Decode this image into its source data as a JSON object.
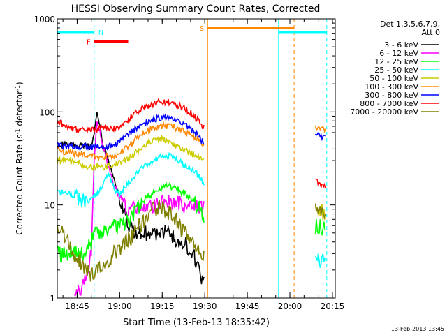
{
  "chart_data": {
    "type": "line",
    "title": "HESSI Observing Summary Count Rates, Corrected",
    "xlabel": "Start Time (13-Feb-13 18:35:42)",
    "ylabel_main": "Corrected Count Rate (s",
    "ylabel_sup1": "-1",
    "ylabel_mid": " detector",
    "ylabel_sup2": "-1",
    "ylabel_end": ")",
    "x_unit": "minutes after 18:00 UT",
    "xlim": [
      38,
      136
    ],
    "ylim": [
      1,
      1000
    ],
    "y_scale": "log",
    "x_ticks": [
      {
        "v": 45,
        "label": "18:45"
      },
      {
        "v": 60,
        "label": "19:00"
      },
      {
        "v": 75,
        "label": "19:15"
      },
      {
        "v": 90,
        "label": "19:30"
      },
      {
        "v": 105,
        "label": "19:45"
      },
      {
        "v": 120,
        "label": "20:00"
      },
      {
        "v": 135,
        "label": "20:15"
      }
    ],
    "y_ticks": [
      {
        "v": 1,
        "label": "1"
      },
      {
        "v": 10,
        "label": "10"
      },
      {
        "v": 100,
        "label": "100"
      },
      {
        "v": 1000,
        "label": "1000"
      }
    ],
    "legend_header": [
      "Det 1,3,5,6,7,9,",
      "Att 0"
    ],
    "legend_placement": "right",
    "series": [
      {
        "name": "3 - 6 keV",
        "color": "#000000",
        "segments": [
          [
            [
              38,
              45
            ],
            [
              47,
              43
            ],
            [
              50,
              42
            ],
            [
              51,
              60
            ],
            [
              52,
              95
            ],
            [
              53,
              70
            ],
            [
              54,
              45
            ],
            [
              56,
              30
            ],
            [
              58,
              18
            ],
            [
              60,
              12
            ],
            [
              62,
              8
            ],
            [
              63,
              6
            ],
            [
              66,
              5
            ],
            [
              70,
              5
            ],
            [
              74,
              5
            ],
            [
              78,
              5
            ],
            [
              80,
              4
            ],
            [
              83,
              4
            ],
            [
              86,
              3
            ],
            [
              88,
              2
            ],
            [
              90,
              1.4
            ]
          ]
        ]
      },
      {
        "name": "6 - 12 keV",
        "color": "#ff00ff",
        "segments": [
          [
            [
              44,
              1
            ],
            [
              46,
              1.2
            ],
            [
              48,
              1.5
            ],
            [
              50,
              3
            ],
            [
              51,
              30
            ],
            [
              52,
              80
            ],
            [
              53,
              60
            ],
            [
              55,
              35
            ],
            [
              57,
              20
            ],
            [
              59,
              14
            ],
            [
              61,
              11
            ],
            [
              63,
              9
            ],
            [
              66,
              9
            ],
            [
              70,
              9
            ],
            [
              74,
              10
            ],
            [
              77,
              11
            ],
            [
              80,
              11
            ],
            [
              83,
              10
            ],
            [
              86,
              10
            ],
            [
              88,
              9
            ],
            [
              90,
              9
            ]
          ]
        ]
      },
      {
        "name": "12 - 25 keV",
        "color": "#00ff00",
        "segments": [
          [
            [
              38,
              3
            ],
            [
              44,
              3
            ],
            [
              48,
              3
            ],
            [
              50,
              4
            ],
            [
              52,
              5
            ],
            [
              56,
              5.5
            ],
            [
              60,
              6
            ],
            [
              64,
              7
            ],
            [
              66,
              9
            ],
            [
              68,
              11
            ],
            [
              71,
              13
            ],
            [
              74,
              15
            ],
            [
              77,
              16
            ],
            [
              80,
              15
            ],
            [
              83,
              13
            ],
            [
              86,
              11
            ],
            [
              88,
              9
            ],
            [
              90,
              7
            ]
          ],
          [
            [
              129,
              6
            ],
            [
              130,
              5.5
            ],
            [
              131,
              6
            ],
            [
              132,
              5.5
            ],
            [
              133,
              5.5
            ]
          ]
        ]
      },
      {
        "name": "25 - 50 keV",
        "color": "#00ffff",
        "segments": [
          [
            [
              38,
              14
            ],
            [
              42,
              13
            ],
            [
              44,
              12
            ],
            [
              48,
              11
            ],
            [
              50,
              12
            ],
            [
              52,
              13
            ],
            [
              54,
              17
            ],
            [
              56,
              22
            ],
            [
              58,
              15
            ],
            [
              60,
              13
            ],
            [
              62,
              16
            ],
            [
              64,
              18
            ],
            [
              66,
              22
            ],
            [
              68,
              25
            ],
            [
              70,
              28
            ],
            [
              72,
              30
            ],
            [
              74,
              32
            ],
            [
              76,
              34
            ],
            [
              78,
              33
            ],
            [
              80,
              30
            ],
            [
              83,
              27
            ],
            [
              86,
              24
            ],
            [
              88,
              20
            ],
            [
              90,
              17
            ]
          ],
          [
            [
              129,
              2.5
            ],
            [
              130,
              2.6
            ],
            [
              131,
              2.5
            ],
            [
              132,
              2.6
            ],
            [
              133,
              2.5
            ]
          ]
        ]
      },
      {
        "name": "50 - 100 keV",
        "color": "#cccc00",
        "segments": [
          [
            [
              38,
              30
            ],
            [
              42,
              30
            ],
            [
              46,
              28
            ],
            [
              48,
              26
            ],
            [
              50,
              25
            ],
            [
              52,
              26
            ],
            [
              54,
              25
            ],
            [
              56,
              26
            ],
            [
              58,
              27
            ],
            [
              60,
              28
            ],
            [
              62,
              30
            ],
            [
              64,
              33
            ],
            [
              66,
              37
            ],
            [
              68,
              42
            ],
            [
              70,
              47
            ],
            [
              72,
              50
            ],
            [
              74,
              51
            ],
            [
              76,
              50
            ],
            [
              78,
              47
            ],
            [
              80,
              43
            ],
            [
              83,
              39
            ],
            [
              86,
              35
            ],
            [
              88,
              32
            ],
            [
              90,
              31
            ]
          ],
          [
            [
              129,
              9
            ],
            [
              130,
              9
            ],
            [
              131,
              8.5
            ],
            [
              132,
              8
            ],
            [
              133,
              8
            ]
          ]
        ]
      },
      {
        "name": "100 - 300 keV",
        "color": "#ff8800",
        "segments": [
          [
            [
              38,
              38
            ],
            [
              42,
              37
            ],
            [
              46,
              35
            ],
            [
              50,
              34
            ],
            [
              54,
              33
            ],
            [
              58,
              34
            ],
            [
              60,
              36
            ],
            [
              62,
              40
            ],
            [
              64,
              45
            ],
            [
              66,
              52
            ],
            [
              68,
              58
            ],
            [
              70,
              63
            ],
            [
              72,
              67
            ],
            [
              74,
              70
            ],
            [
              76,
              71
            ],
            [
              78,
              70
            ],
            [
              80,
              67
            ],
            [
              83,
              61
            ],
            [
              86,
              55
            ],
            [
              88,
              49
            ],
            [
              90,
              45
            ]
          ],
          [
            [
              129,
              66
            ],
            [
              130,
              66
            ],
            [
              131,
              65
            ],
            [
              132,
              64
            ],
            [
              133,
              63
            ]
          ]
        ]
      },
      {
        "name": "300 - 800 keV",
        "color": "#0000ff",
        "segments": [
          [
            [
              38,
              44
            ],
            [
              42,
              42
            ],
            [
              46,
              42
            ],
            [
              50,
              42
            ],
            [
              54,
              42
            ],
            [
              58,
              44
            ],
            [
              60,
              48
            ],
            [
              62,
              54
            ],
            [
              64,
              60
            ],
            [
              66,
              67
            ],
            [
              68,
              74
            ],
            [
              70,
              79
            ],
            [
              72,
              83
            ],
            [
              74,
              86
            ],
            [
              76,
              86
            ],
            [
              78,
              84
            ],
            [
              80,
              80
            ],
            [
              83,
              72
            ],
            [
              86,
              62
            ],
            [
              88,
              53
            ],
            [
              90,
              45
            ]
          ],
          [
            [
              129,
              56
            ],
            [
              130,
              56
            ],
            [
              131,
              55
            ],
            [
              132,
              54
            ],
            [
              133,
              52
            ]
          ]
        ]
      },
      {
        "name": "800 - 7000 keV",
        "color": "#ff0000",
        "segments": [
          [
            [
              38,
              80
            ],
            [
              40,
              73
            ],
            [
              42,
              68
            ],
            [
              44,
              65
            ],
            [
              46,
              64
            ],
            [
              48,
              64
            ],
            [
              50,
              65
            ],
            [
              52,
              66
            ],
            [
              54,
              67
            ],
            [
              56,
              64
            ],
            [
              58,
              65
            ],
            [
              60,
              70
            ],
            [
              62,
              78
            ],
            [
              64,
              88
            ],
            [
              66,
              98
            ],
            [
              68,
              108
            ],
            [
              70,
              117
            ],
            [
              72,
              124
            ],
            [
              74,
              128
            ],
            [
              76,
              129
            ],
            [
              78,
              126
            ],
            [
              80,
              120
            ],
            [
              83,
              108
            ],
            [
              86,
              92
            ],
            [
              88,
              78
            ],
            [
              90,
              66
            ]
          ],
          [
            [
              129,
              18
            ],
            [
              130,
              17
            ],
            [
              131,
              16
            ],
            [
              132,
              16
            ],
            [
              133,
              15
            ]
          ]
        ]
      },
      {
        "name": "7000 - 20000 keV",
        "color": "#808000",
        "segments": [
          [
            [
              38,
              6
            ],
            [
              40,
              5
            ],
            [
              42,
              4
            ],
            [
              44,
              3
            ],
            [
              46,
              2.5
            ],
            [
              48,
              2
            ],
            [
              50,
              1.8
            ],
            [
              52,
              2
            ],
            [
              54,
              2.3
            ],
            [
              56,
              2.6
            ],
            [
              58,
              3
            ],
            [
              60,
              3.2
            ],
            [
              62,
              3.8
            ],
            [
              64,
              4.5
            ],
            [
              66,
              5.5
            ],
            [
              68,
              6.5
            ],
            [
              70,
              7.5
            ],
            [
              72,
              9
            ],
            [
              74,
              9.5
            ],
            [
              76,
              9
            ],
            [
              78,
              8
            ],
            [
              80,
              7
            ],
            [
              82,
              5.5
            ],
            [
              84,
              4.5
            ],
            [
              86,
              3.8
            ],
            [
              88,
              3.2
            ],
            [
              90,
              2.6
            ]
          ],
          [
            [
              129,
              10
            ],
            [
              130,
              9
            ],
            [
              131,
              8.5
            ],
            [
              132,
              8
            ],
            [
              133,
              7.5
            ]
          ]
        ]
      }
    ],
    "flag_bars": [
      {
        "label": "N",
        "color": "#00ffff",
        "y": 720,
        "x0": 38,
        "x1": 51
      },
      {
        "label": "F",
        "color": "#ff0000",
        "y": 570,
        "x0": 51,
        "x1": 63
      },
      {
        "label": "S",
        "color": "#ff8800",
        "y": 800,
        "x0": 91,
        "x1": 121.5
      },
      {
        "label": "",
        "color": "#00ffff",
        "y": 720,
        "x0": 116,
        "x1": 133
      }
    ],
    "marker_lines": [
      {
        "x": 51,
        "color": "#00ffff",
        "style": "dashed"
      },
      {
        "x": 91,
        "color": "#ff8800",
        "style": "solid"
      },
      {
        "x": 116,
        "color": "#00ffff",
        "style": "solid"
      },
      {
        "x": 121.5,
        "color": "#ff8800",
        "style": "dashed"
      },
      {
        "x": 133,
        "color": "#00ffff",
        "style": "dashed"
      }
    ]
  },
  "footer_stamp": "13-Feb-2013 13:45"
}
